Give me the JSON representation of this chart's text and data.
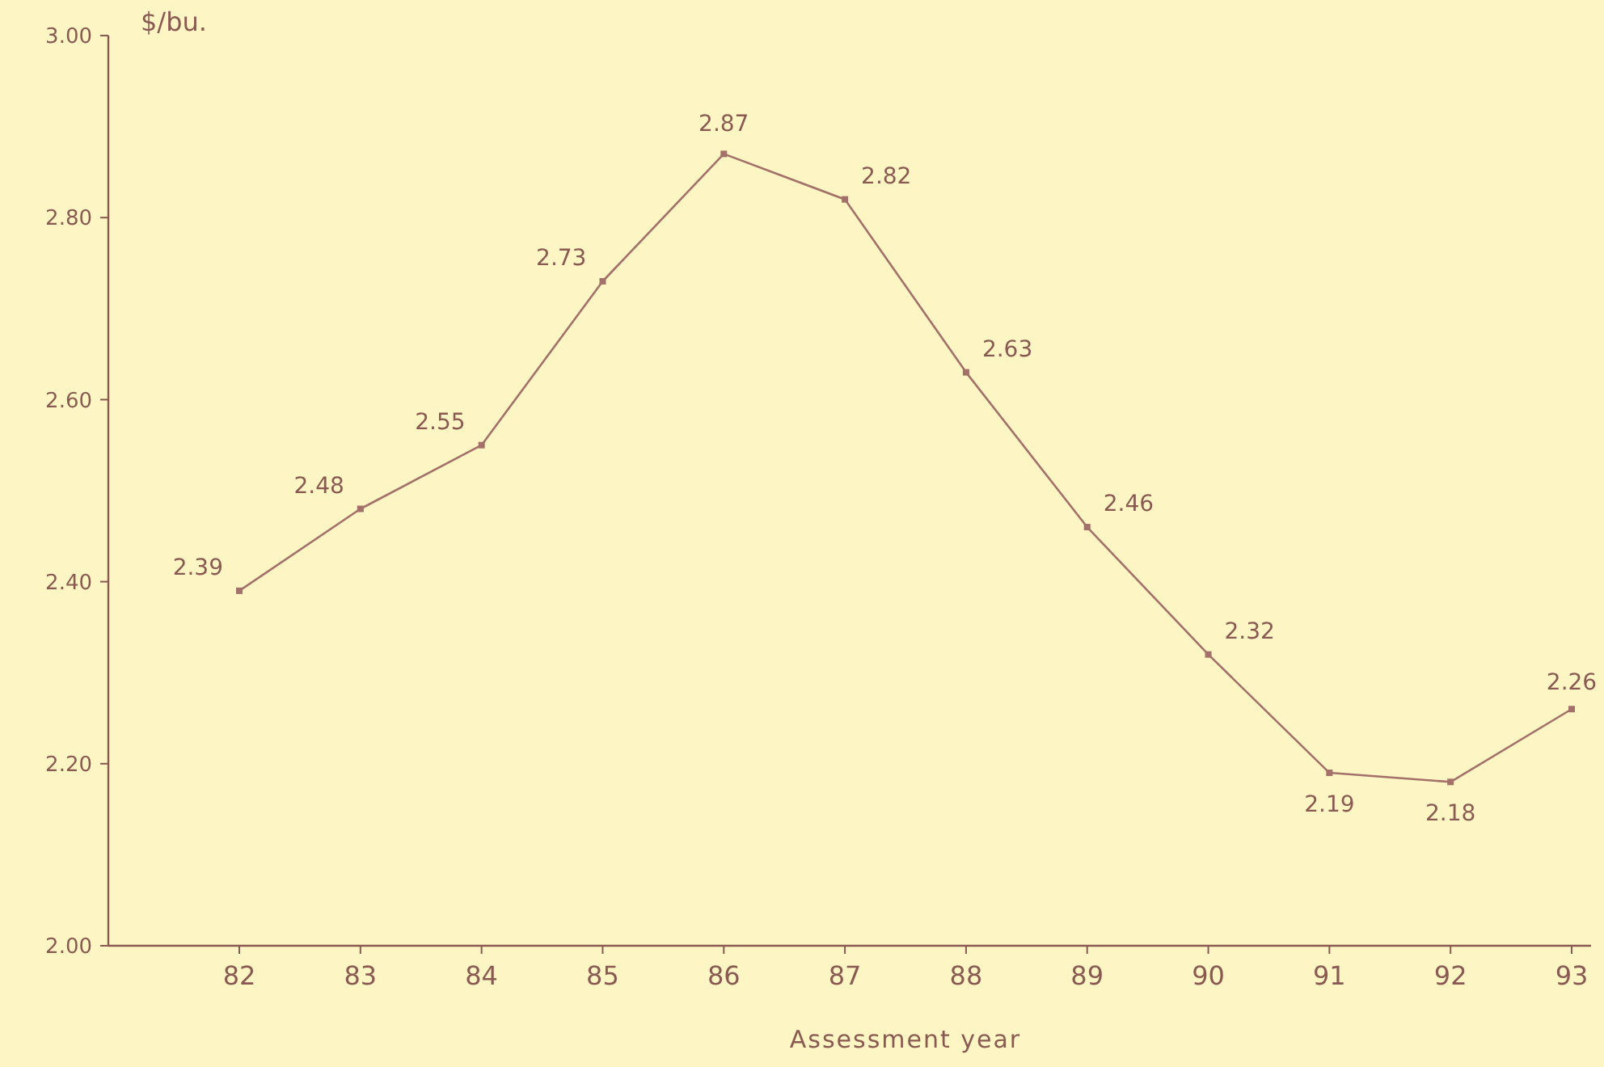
{
  "chart_data": {
    "type": "line",
    "ylabel": "$/bu.",
    "xlabel": "Assessment year",
    "categories": [
      "82",
      "83",
      "84",
      "85",
      "86",
      "87",
      "88",
      "89",
      "90",
      "91",
      "92",
      "93"
    ],
    "series": [
      {
        "color": "#a4706a",
        "values": [
          2.39,
          2.48,
          2.55,
          2.73,
          2.87,
          2.82,
          2.63,
          2.46,
          2.32,
          2.19,
          2.18,
          2.26
        ]
      }
    ],
    "ylim": [
      2.0,
      3.0
    ],
    "yticks": [
      {
        "value": 2.0,
        "label": "2.00"
      },
      {
        "value": 2.2,
        "label": "2.20"
      },
      {
        "value": 2.4,
        "label": "2.40"
      },
      {
        "value": 2.6,
        "label": "2.60"
      },
      {
        "value": 2.8,
        "label": "2.80"
      },
      {
        "value": 3.0,
        "label": "3.00"
      }
    ],
    "data_labels": true,
    "marker": "square"
  }
}
